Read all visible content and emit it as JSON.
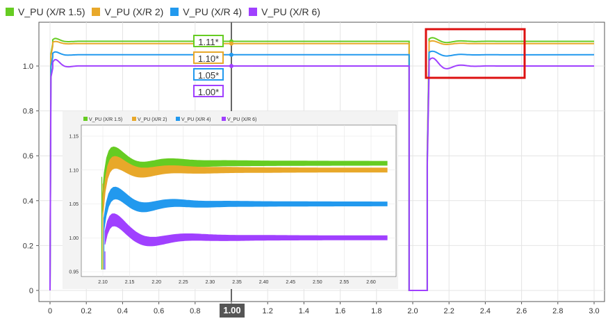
{
  "legend": [
    {
      "name": "V_PU (X/R 1.5)",
      "color": "#66cc22"
    },
    {
      "name": "V_PU (X/R 2)",
      "color": "#e8a82a"
    },
    {
      "name": "V_PU (X/R 4)",
      "color": "#2299ee"
    },
    {
      "name": "V_PU (X/R 6)",
      "color": "#a040ff"
    }
  ],
  "cursor": {
    "x": 1.0,
    "label": "1.00"
  },
  "cursor_values": [
    {
      "label": "1.11*",
      "color": "#66cc22"
    },
    {
      "label": "1.10*",
      "color": "#e8a82a"
    },
    {
      "label": "1.05*",
      "color": "#2299ee"
    },
    {
      "label": "1.00*",
      "color": "#a040ff"
    }
  ],
  "highlight_color": "#dd1111",
  "chart_data": [
    {
      "type": "line",
      "xlim": [
        0,
        3.0
      ],
      "ylim": [
        0,
        1.15
      ],
      "x_ticks": [
        "0",
        "0.2",
        "0.4",
        "0.6",
        "0.8",
        "1.0",
        "1.2",
        "1.4",
        "1.6",
        "1.8",
        "2.0",
        "2.2",
        "2.4",
        "2.6",
        "2.8",
        "3.0"
      ],
      "y_ticks": [
        "0",
        "0.2",
        "0.4",
        "0.6",
        "0.8",
        "1.0"
      ],
      "grid": true,
      "series": [
        {
          "name": "V_PU (X/R 1.5)",
          "steady": 1.11,
          "peak": 1.13
        },
        {
          "name": "V_PU (X/R 2)",
          "steady": 1.1,
          "peak": 1.115
        },
        {
          "name": "V_PU (X/R 4)",
          "steady": 1.05,
          "peak": 1.07
        },
        {
          "name": "V_PU (X/R 6)",
          "steady": 1.0,
          "peak": 1.045
        }
      ],
      "outage": [
        1.98,
        2.08
      ]
    },
    {
      "type": "line",
      "xlim": [
        2.08,
        2.63
      ],
      "ylim": [
        0.94,
        1.16
      ],
      "x_ticks": [
        "2.10",
        "2.15",
        "2.20",
        "2.25",
        "2.30",
        "2.35",
        "2.40",
        "2.45",
        "2.50",
        "2.55",
        "2.60"
      ],
      "y_ticks": [
        "0.95",
        "1.00",
        "1.05",
        "1.10",
        "1.15"
      ],
      "grid": true,
      "series": [
        {
          "name": "V_PU (X/R 1.5)",
          "steady": 1.11,
          "peak": 1.13
        },
        {
          "name": "V_PU (X/R 2)",
          "steady": 1.1,
          "peak": 1.115
        },
        {
          "name": "V_PU (X/R 4)",
          "steady": 1.05,
          "peak": 1.07
        },
        {
          "name": "V_PU (X/R 6)",
          "steady": 1.0,
          "peak": 1.045
        }
      ]
    }
  ]
}
